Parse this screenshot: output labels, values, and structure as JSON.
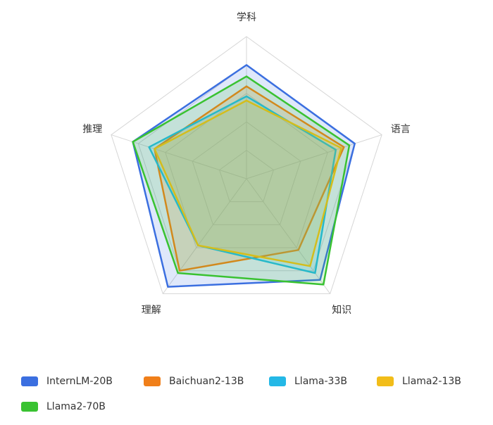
{
  "chart_data": {
    "type": "radar",
    "axes": [
      "学科",
      "语言",
      "知识",
      "理解",
      "推理"
    ],
    "max": 100,
    "levels": 5,
    "series": [
      {
        "name": "InternLM-20B",
        "color": "#3b6fe0",
        "values": [
          80,
          80,
          88,
          94,
          84
        ]
      },
      {
        "name": "Baichuan2-13B",
        "color": "#f07f1a",
        "values": [
          65,
          72,
          62,
          80,
          68
        ]
      },
      {
        "name": "Llama-33B",
        "color": "#24b8e6",
        "values": [
          58,
          66,
          82,
          58,
          72
        ]
      },
      {
        "name": "Llama2-13B",
        "color": "#f2bd19",
        "values": [
          55,
          70,
          76,
          58,
          68
        ]
      },
      {
        "name": "Llama2-70B",
        "color": "#39c231",
        "values": [
          72,
          76,
          92,
          82,
          84
        ]
      }
    ]
  }
}
